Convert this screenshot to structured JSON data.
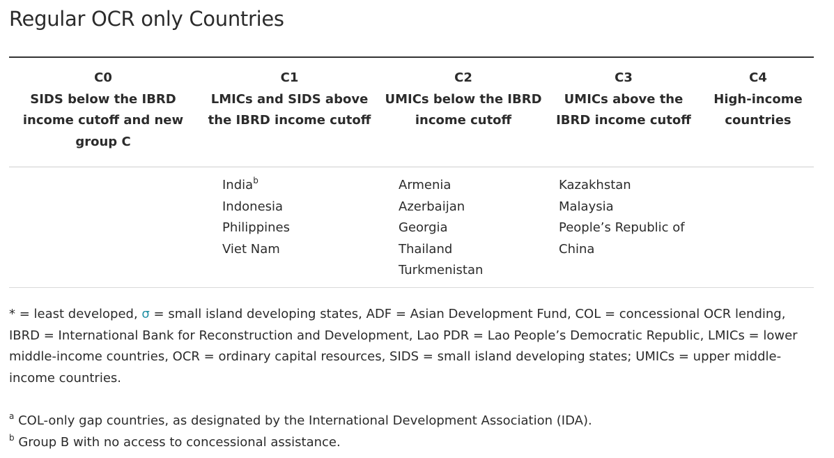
{
  "title": "Regular OCR only Countries",
  "columns": [
    {
      "code": "C0",
      "line1": "SIDS below the IBRD",
      "line2": "income cutoff and new",
      "line3": "group C"
    },
    {
      "code": "C1",
      "line1": "LMICs and SIDS above",
      "line2": "the IBRD income cutoff",
      "line3": ""
    },
    {
      "code": "C2",
      "line1": "UMICs below the IBRD",
      "line2": "income cutoff",
      "line3": ""
    },
    {
      "code": "C3",
      "line1": "UMICs above the",
      "line2": "IBRD income cutoff",
      "line3": ""
    },
    {
      "code": "C4",
      "line1": "High-income",
      "line2": "countries",
      "line3": ""
    }
  ],
  "cells": {
    "c0": [],
    "c1": [
      {
        "name": "India",
        "sup": "b"
      },
      {
        "name": "Indonesia",
        "sup": ""
      },
      {
        "name": "Philippines",
        "sup": ""
      },
      {
        "name": "Viet Nam",
        "sup": ""
      }
    ],
    "c2": [
      "Armenia",
      "Azerbaijan",
      "Georgia",
      "Thailand",
      "Turkmenistan"
    ],
    "c3": [
      "Kazakhstan",
      "Malaysia",
      "People’s Republic of China"
    ],
    "c4": []
  },
  "notes": {
    "abbrev_part1": "* = least developed, ",
    "sigma": "σ",
    "abbrev_part2": " = small island developing states, ADF = Asian Development Fund, COL = concessional OCR lending, IBRD = International Bank for Reconstruction and Development, Lao PDR = Lao People’s Democratic Republic, LMICs = lower middle-income countries, OCR = ordinary capital resources, SIDS = small island developing states; UMICs = upper middle-income countries.",
    "footnote_a_mark": "a",
    "footnote_a_text": " COL-only gap countries, as designated by the International Development Association (IDA).",
    "footnote_b_mark": "b",
    "footnote_b_text": " Group B with no access to concessional assistance."
  },
  "colors": {
    "text": "#2b2b2b",
    "rule": "#333333",
    "sigma": "#1f8fa3"
  }
}
